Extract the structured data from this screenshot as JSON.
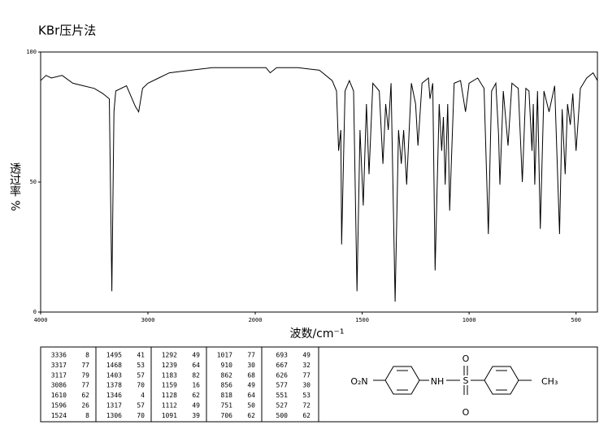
{
  "chart_data": {
    "type": "line",
    "title": "KBr压片法",
    "y_label": "透过率 %",
    "x_label": "波数/cm⁻¹",
    "xlim": [
      4000,
      400
    ],
    "x_scale_change": 2000,
    "xticks": [
      4000,
      3000,
      2000,
      1500,
      1000,
      500
    ],
    "ylim": [
      0,
      100
    ],
    "yticks": [
      0,
      50,
      100
    ],
    "color": "#000000",
    "x": [
      4000,
      3950,
      3900,
      3800,
      3700,
      3600,
      3500,
      3420,
      3360,
      3336,
      3317,
      3300,
      3200,
      3117,
      3086,
      3050,
      3000,
      2900,
      2800,
      2600,
      2400,
      2200,
      2000,
      1950,
      1930,
      1900,
      1800,
      1700,
      1640,
      1620,
      1610,
      1600,
      1596,
      1580,
      1560,
      1540,
      1524,
      1510,
      1495,
      1480,
      1468,
      1450,
      1420,
      1403,
      1390,
      1378,
      1365,
      1346,
      1330,
      1317,
      1306,
      1292,
      1270,
      1250,
      1239,
      1220,
      1190,
      1183,
      1170,
      1159,
      1140,
      1128,
      1120,
      1112,
      1100,
      1091,
      1070,
      1040,
      1017,
      1000,
      960,
      930,
      910,
      895,
      875,
      862,
      856,
      840,
      818,
      800,
      770,
      751,
      735,
      720,
      706,
      700,
      693,
      680,
      667,
      650,
      626,
      600,
      577,
      565,
      551,
      540,
      527,
      515,
      500,
      480,
      450,
      420,
      400
    ],
    "values": [
      89,
      91,
      90,
      91,
      88,
      87,
      86,
      84,
      82,
      8,
      77,
      85,
      87,
      79,
      77,
      86,
      88,
      90,
      92,
      93,
      94,
      94,
      94,
      94,
      92,
      94,
      94,
      93,
      89,
      85,
      62,
      70,
      26,
      85,
      89,
      85,
      8,
      70,
      41,
      80,
      53,
      88,
      85,
      57,
      80,
      70,
      88,
      4,
      70,
      57,
      70,
      49,
      88,
      80,
      64,
      88,
      90,
      82,
      88,
      16,
      80,
      62,
      75,
      49,
      80,
      39,
      88,
      89,
      77,
      88,
      90,
      86,
      30,
      85,
      88,
      68,
      49,
      85,
      64,
      88,
      86,
      50,
      86,
      85,
      62,
      80,
      49,
      85,
      32,
      85,
      77,
      87,
      30,
      78,
      53,
      80,
      72,
      84,
      62,
      86,
      90,
      92,
      89
    ],
    "peak_table": {
      "wavenumbers": [
        3336,
        3317,
        3117,
        3086,
        1610,
        1596,
        1524,
        1495,
        1468,
        1403,
        1378,
        1346,
        1317,
        1306,
        1292,
        1239,
        1183,
        1159,
        1128,
        1112,
        1091,
        1017,
        910,
        862,
        856,
        818,
        751,
        706,
        693,
        667,
        626,
        577,
        551,
        527,
        500
      ],
      "transmittance": [
        8,
        77,
        79,
        77,
        62,
        26,
        8,
        41,
        53,
        57,
        70,
        4,
        57,
        70,
        49,
        64,
        82,
        16,
        62,
        49,
        39,
        77,
        30,
        68,
        49,
        64,
        50,
        62,
        49,
        32,
        77,
        30,
        53,
        72,
        62
      ]
    },
    "structure": {
      "nitro": "O₂N",
      "amine": "NH",
      "sulfur": "S",
      "oxygen_top": "O",
      "oxygen_bottom": "O",
      "methyl": "CH₃"
    }
  }
}
